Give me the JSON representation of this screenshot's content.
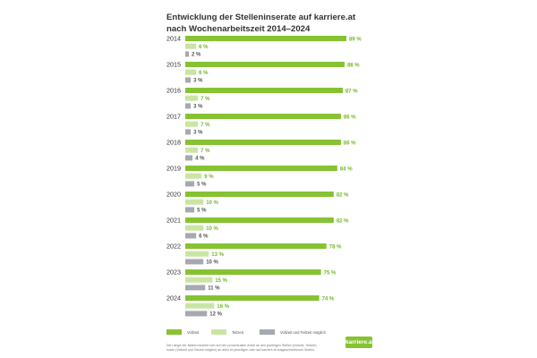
{
  "header": {
    "title_line1": "Entwicklung der Stelleninserate auf karriere.at",
    "title_line2": "nach Wochenarbeitszeit 2014–2024"
  },
  "chart_data": {
    "type": "bar",
    "orientation": "horizontal",
    "categories": [
      "2014",
      "2015",
      "2016",
      "2017",
      "2018",
      "2019",
      "2020",
      "2021",
      "2022",
      "2023",
      "2024"
    ],
    "series": [
      {
        "name": "Vollzeit",
        "color": "#86c232",
        "values": [
          89,
          88,
          87,
          86,
          86,
          84,
          82,
          82,
          78,
          75,
          74
        ]
      },
      {
        "name": "Teilzeit",
        "color": "#c9e5a4",
        "values": [
          6,
          6,
          7,
          7,
          7,
          9,
          10,
          10,
          13,
          15,
          16
        ]
      },
      {
        "name": "Vollzeit und Teilzeit möglich",
        "color": "#a6a9b2",
        "values": [
          2,
          3,
          3,
          3,
          4,
          5,
          5,
          6,
          10,
          11,
          12
        ]
      }
    ],
    "value_suffix": " %",
    "xlim": [
      0,
      100
    ],
    "grid": false,
    "legend_position": "bottom-left"
  },
  "footer": {
    "note": "Die Länge der Balken bezieht sich auf den prozentualen Anteil an den jeweiligen Stellen (Vollzeit, Teilzeit) sowie (Vollzeit und Teilzeit möglich) an allen im jeweiligen Jahr auf karriere.at ausgeschriebenen Stellen.",
    "logo_text": "karriere.at"
  }
}
